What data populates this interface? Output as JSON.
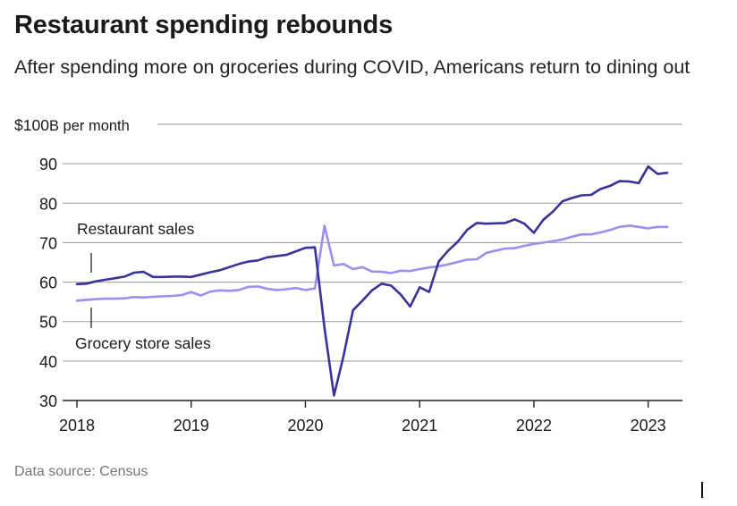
{
  "title": "Restaurant spending rebounds",
  "subtitle": "After spending more on groceries during COVID, Americans return to dining out",
  "source": "Data source: Census",
  "chart_data": {
    "type": "line",
    "title": "Restaurant spending rebounds",
    "subtitle": "After spending more on groceries during COVID, Americans return to dining out",
    "ylabel": "$100B per month",
    "y_unit_prefix": "$100",
    "y_unit_suffix": "B per month",
    "xlabel": "",
    "ylim": [
      30,
      100
    ],
    "yticks": [
      30,
      40,
      50,
      60,
      70,
      80,
      90,
      100
    ],
    "ytick_labels": [
      "30",
      "40",
      "50",
      "60",
      "70",
      "80",
      "90"
    ],
    "xlim": [
      2018,
      2023.3
    ],
    "xticks": [
      2018,
      2019,
      2020,
      2021,
      2022,
      2023
    ],
    "xtick_labels": [
      "2018",
      "2019",
      "2020",
      "2021",
      "2022",
      "2023"
    ],
    "grid": true,
    "colors": {
      "restaurant": "#38339a",
      "grocery": "#9b8ff0",
      "grid": "#9a9a9a",
      "axis": "#222222"
    },
    "annotations": [
      {
        "label": "Restaurant sales",
        "series": "Restaurant sales"
      },
      {
        "label": "Grocery store sales",
        "series": "Grocery store sales"
      }
    ],
    "series": [
      {
        "name": "Restaurant sales",
        "x": [
          2018.0,
          2018.083,
          2018.167,
          2018.25,
          2018.333,
          2018.417,
          2018.5,
          2018.583,
          2018.667,
          2018.75,
          2018.833,
          2018.917,
          2019.0,
          2019.083,
          2019.167,
          2019.25,
          2019.333,
          2019.417,
          2019.5,
          2019.583,
          2019.667,
          2019.75,
          2019.833,
          2019.917,
          2020.0,
          2020.083,
          2020.167,
          2020.25,
          2020.333,
          2020.417,
          2020.5,
          2020.583,
          2020.667,
          2020.75,
          2020.833,
          2020.917,
          2021.0,
          2021.083,
          2021.167,
          2021.25,
          2021.333,
          2021.417,
          2021.5,
          2021.583,
          2021.667,
          2021.75,
          2021.833,
          2021.917,
          2022.0,
          2022.083,
          2022.167,
          2022.25,
          2022.333,
          2022.417,
          2022.5,
          2022.583,
          2022.667,
          2022.75,
          2022.833,
          2022.917,
          2023.0,
          2023.083,
          2023.167
        ],
        "values": [
          59.5,
          59.6,
          60.2,
          60.6,
          61.0,
          61.4,
          62.4,
          62.6,
          61.3,
          61.3,
          61.4,
          61.4,
          61.3,
          61.9,
          62.5,
          63.0,
          63.8,
          64.6,
          65.2,
          65.5,
          66.3,
          66.6,
          66.9,
          67.8,
          68.7,
          68.8,
          48.4,
          31.3,
          41.2,
          52.9,
          55.3,
          57.9,
          59.6,
          59.1,
          56.9,
          53.8,
          58.7,
          57.5,
          65.2,
          68.0,
          70.2,
          73.3,
          75.0,
          74.8,
          74.9,
          75.0,
          75.9,
          74.8,
          72.5,
          75.8,
          77.9,
          80.5,
          81.3,
          82.0,
          82.1,
          83.6,
          84.4,
          85.6,
          85.5,
          85.1,
          89.3,
          87.4,
          87.7
        ]
      },
      {
        "name": "Grocery store sales",
        "x": [
          2018.0,
          2018.083,
          2018.167,
          2018.25,
          2018.333,
          2018.417,
          2018.5,
          2018.583,
          2018.667,
          2018.75,
          2018.833,
          2018.917,
          2019.0,
          2019.083,
          2019.167,
          2019.25,
          2019.333,
          2019.417,
          2019.5,
          2019.583,
          2019.667,
          2019.75,
          2019.833,
          2019.917,
          2020.0,
          2020.083,
          2020.167,
          2020.25,
          2020.333,
          2020.417,
          2020.5,
          2020.583,
          2020.667,
          2020.75,
          2020.833,
          2020.917,
          2021.0,
          2021.083,
          2021.167,
          2021.25,
          2021.333,
          2021.417,
          2021.5,
          2021.583,
          2021.667,
          2021.75,
          2021.833,
          2021.917,
          2022.0,
          2022.083,
          2022.167,
          2022.25,
          2022.333,
          2022.417,
          2022.5,
          2022.583,
          2022.667,
          2022.75,
          2022.833,
          2022.917,
          2023.0,
          2023.083,
          2023.167
        ],
        "values": [
          55.3,
          55.5,
          55.7,
          55.8,
          55.8,
          55.9,
          56.2,
          56.1,
          56.3,
          56.4,
          56.5,
          56.7,
          57.5,
          56.6,
          57.6,
          57.9,
          57.8,
          58.0,
          58.8,
          58.9,
          58.3,
          58.0,
          58.2,
          58.5,
          58.0,
          58.4,
          74.3,
          64.2,
          64.6,
          63.3,
          63.8,
          62.7,
          62.6,
          62.3,
          62.9,
          62.8,
          63.3,
          63.7,
          64.0,
          64.5,
          65.1,
          65.7,
          65.8,
          67.4,
          68.0,
          68.5,
          68.6,
          69.2,
          69.7,
          70.0,
          70.4,
          70.8,
          71.5,
          72.1,
          72.1,
          72.6,
          73.2,
          74.0,
          74.3,
          74.0,
          73.6,
          74.0,
          74.0
        ]
      }
    ]
  }
}
